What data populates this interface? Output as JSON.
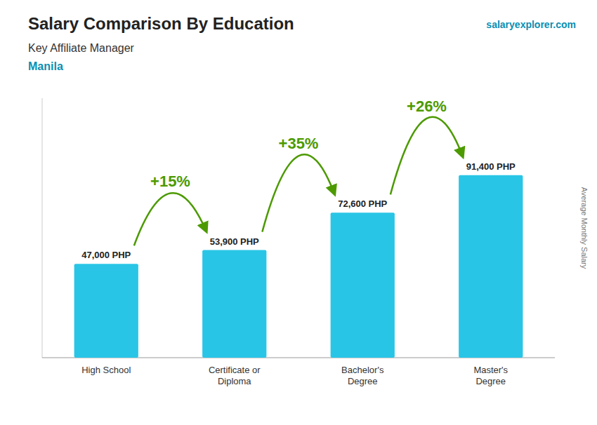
{
  "chart_data": {
    "type": "bar",
    "title": "Salary Comparison By Education",
    "subtitle": [
      "Key Affiliate Manager",
      "Manila"
    ],
    "annotations": [
      "salaryexplorer.com"
    ],
    "ylabel": "Average Monthly Salary",
    "categories": [
      "High School",
      "Certificate or\nDiploma",
      "Bachelor's\nDegree",
      "Master's\nDegree"
    ],
    "values": [
      47000,
      53900,
      72600,
      91400
    ],
    "value_labels": [
      "47,000 PHP",
      "53,900 PHP",
      "72,600 PHP",
      "91,400 PHP"
    ],
    "growth_labels": [
      "+15%",
      "+35%",
      "+26%"
    ],
    "color": "#29c5e6",
    "ylim": [
      0,
      130000
    ],
    "grid": false,
    "data_labels": true,
    "tick_labels": "x"
  }
}
